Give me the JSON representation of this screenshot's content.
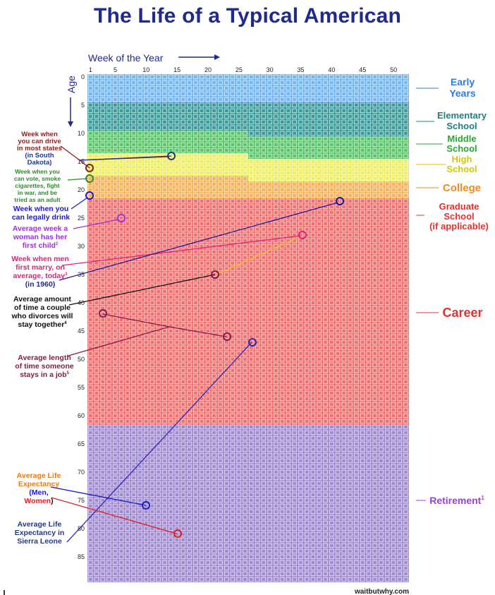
{
  "title": "The Life of a Typical American",
  "axes": {
    "x_label": "Week of the Year",
    "y_label": "Age",
    "x_ticks": [
      "1",
      "5",
      "10",
      "15",
      "20",
      "25",
      "30",
      "35",
      "40",
      "45",
      "50"
    ],
    "y_ticks": [
      "0",
      "5",
      "10",
      "15",
      "20",
      "25",
      "30",
      "35",
      "40",
      "45",
      "50",
      "55",
      "60",
      "65",
      "70",
      "75",
      "80",
      "85"
    ]
  },
  "grid": {
    "weeks": 52,
    "years": 90
  },
  "stages": [
    {
      "id": "early",
      "label": "Early Years",
      "from_age": 0,
      "from_week": 1,
      "color": "#74b6f0",
      "text_color": "#2c7be0"
    },
    {
      "id": "elementary",
      "label": "Elementary School",
      "from_age": 5,
      "from_week": 1,
      "color": "#3c9a9a",
      "text_color": "#208080"
    },
    {
      "id": "middle",
      "label": "Middle School",
      "from_age": 10,
      "from_week": 27,
      "color": "#5cc46a",
      "text_color": "#2aa632"
    },
    {
      "id": "high",
      "label": "High School",
      "from_age": 14,
      "from_week": 27,
      "color": "#eeee66",
      "text_color": "#d4c900"
    },
    {
      "id": "college",
      "label": "College",
      "from_age": 18,
      "from_week": 27,
      "color": "#f4b25c",
      "text_color": "#f08a20"
    },
    {
      "id": "grad",
      "label": "Graduate School (if applicable)",
      "from_age": 22,
      "from_week": 27,
      "color": "#f07070",
      "text_color": "#e53030"
    },
    {
      "id": "career",
      "label": "Career",
      "from_age": 22,
      "from_week": 27,
      "color": "#f07070",
      "text_color": "#e53030"
    },
    {
      "id": "retirement",
      "label": "Retirement",
      "from_age": 62,
      "from_week": 1,
      "color": "#a08bd0",
      "text_color": "#9a3ee0",
      "sup": "1"
    }
  ],
  "annotations": [
    {
      "id": "drive",
      "text": "Week when you can drive in most states (in South Dakota)",
      "week": 1,
      "age": 16,
      "week2": 14,
      "age2": 14,
      "color": "#8c1c1c",
      "sup": ""
    },
    {
      "id": "vote",
      "text": "Week when you can vote, smoke cigarettes, fight in war, and be tried as an adult",
      "week": 1,
      "age": 18,
      "color": "#2a8c2a",
      "sup": ""
    },
    {
      "id": "drink",
      "text": "Week when you can legally drink",
      "week": 1,
      "age": 21,
      "color": "#1a1acc",
      "sup": ""
    },
    {
      "id": "first-child",
      "text": "Average week a woman has her first child",
      "week": 6,
      "age": 25,
      "color": "#9a2ee0",
      "sup": "2"
    },
    {
      "id": "marry",
      "text": "Week when men first marry, on average, today (in 1960)",
      "week": 35,
      "age": 28,
      "week2": 21,
      "age2": 35,
      "color": "#e0207a",
      "sup": "3"
    },
    {
      "id": "divorce",
      "text": "Average amount of time a couple who divorces will stay together",
      "week": 41,
      "age": 22,
      "color": "#111111",
      "sup": "4"
    },
    {
      "id": "job",
      "text": "Average length of time someone stays in a job",
      "week": 3,
      "age": 42,
      "week2": 23,
      "age2": 46,
      "color": "#8a1848",
      "sup": "5"
    },
    {
      "id": "life",
      "text": "Average Life Expectancy (Men, Women)",
      "week": 10,
      "age": 76,
      "week2": 15,
      "age2": 81,
      "color": "#ee7a10",
      "sup": ""
    },
    {
      "id": "sierra",
      "text": "Average Life Expectancy in Sierra Leone",
      "week": 27,
      "age": 47,
      "color": "#1f3a8c",
      "sup": ""
    }
  ],
  "footer": "waitbutwhy.com"
}
